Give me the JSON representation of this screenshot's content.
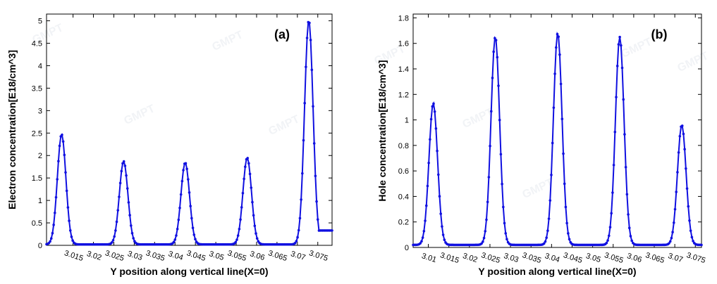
{
  "chart_data": [
    {
      "type": "line",
      "panel_label": "(a)",
      "xlabel": "Y position along vertical line(X=0)",
      "ylabel": "Electron concentration[E18/cm^3]",
      "xlim": [
        3.0085,
        3.0785
      ],
      "ylim": [
        0,
        5.15
      ],
      "x_ticks": [
        3.015,
        3.02,
        3.025,
        3.03,
        3.035,
        3.04,
        3.045,
        3.05,
        3.055,
        3.06,
        3.065,
        3.07,
        3.075
      ],
      "x_tick_labels": [
        "3.015",
        "3.02",
        "3.025",
        "3.03",
        "3.035",
        "3.04",
        "3.045",
        "3.05",
        "3.055",
        "3.06",
        "3.065",
        "3.07",
        "3.075"
      ],
      "y_ticks": [
        0,
        0.5,
        1,
        1.5,
        2,
        2.5,
        3,
        3.5,
        4,
        4.5,
        5
      ],
      "y_tick_labels": [
        "0",
        "0.5",
        "1",
        "1.5",
        "2",
        "2.5",
        "3",
        "3.5",
        "4",
        "4.5",
        "5"
      ],
      "color": "#1010e0",
      "peaks": [
        {
          "x": 3.0122,
          "y": 2.47
        },
        {
          "x": 3.0274,
          "y": 1.87
        },
        {
          "x": 3.0425,
          "y": 1.84
        },
        {
          "x": 3.0577,
          "y": 1.95
        },
        {
          "x": 3.0728,
          "y": 5.01
        }
      ],
      "tail_end": 0.33
    },
    {
      "type": "line",
      "panel_label": "(b)",
      "xlabel": "Y position along vertical line(X=0)",
      "ylabel": "Hole concentration[E18/cm^3]",
      "xlim": [
        3.0063,
        3.0765
      ],
      "ylim": [
        0,
        1.83
      ],
      "x_ticks": [
        3.01,
        3.015,
        3.02,
        3.025,
        3.03,
        3.035,
        3.04,
        3.045,
        3.05,
        3.055,
        3.06,
        3.065,
        3.07,
        3.075
      ],
      "x_tick_labels": [
        "3.01",
        "3.015",
        "3.02",
        "3.025",
        "3.03",
        "3.035",
        "3.04",
        "3.045",
        "3.05",
        "3.055",
        "3.06",
        "3.065",
        "3.07",
        "3.075"
      ],
      "y_ticks": [
        0,
        0.2,
        0.4,
        0.6,
        0.8,
        1,
        1.2,
        1.4,
        1.6,
        1.8
      ],
      "y_tick_labels": [
        "0",
        "0.2",
        "0.4",
        "0.6",
        "0.8",
        "1",
        "1.2",
        "1.4",
        "1.6",
        "1.8"
      ],
      "color": "#1010e0",
      "peaks": [
        {
          "x": 3.0112,
          "y": 1.13
        },
        {
          "x": 3.0263,
          "y": 1.65
        },
        {
          "x": 3.0415,
          "y": 1.68
        },
        {
          "x": 3.0566,
          "y": 1.65
        },
        {
          "x": 3.0717,
          "y": 0.96
        }
      ],
      "tail_end": 0.0
    }
  ],
  "watermark": "GMPT"
}
